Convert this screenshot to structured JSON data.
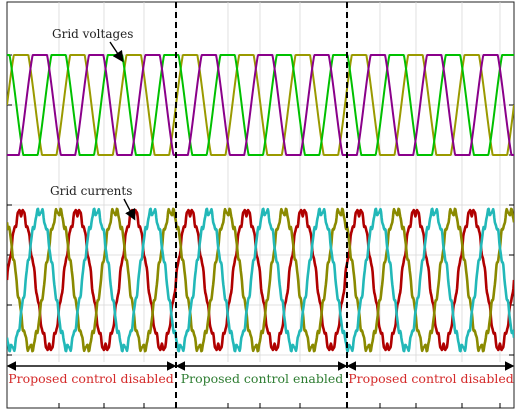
{
  "chart_data": [
    {
      "type": "line",
      "panel": "voltages",
      "title": "",
      "xlabel": "",
      "ylabel": "",
      "cycles_shown": 9,
      "waveform_shape": "clipped-sine",
      "grid": true,
      "annotation": "Grid voltages",
      "series": [
        {
          "name": "",
          "color": "#9a9a00",
          "phase_deg": 0,
          "amplitude": 1.0
        },
        {
          "name": "",
          "color": "#00c000",
          "phase_deg": 120,
          "amplitude": 1.0
        },
        {
          "name": "",
          "color": "#8a008a",
          "phase_deg": 240,
          "amplitude": 1.0
        }
      ]
    },
    {
      "type": "line",
      "panel": "currents",
      "title": "",
      "xlabel": "",
      "ylabel": "",
      "cycles_shown": 9,
      "waveform_shape": "sine-with-ripple",
      "grid": true,
      "annotation": "Grid currents",
      "series": [
        {
          "name": "",
          "color": "#b00000",
          "phase_deg": 0,
          "amplitude": 1.0
        },
        {
          "name": "",
          "color": "#8a8a00",
          "phase_deg": 120,
          "amplitude": 1.0
        },
        {
          "name": "",
          "color": "#22b8b8",
          "phase_deg": 240,
          "amplitude": 1.0
        }
      ]
    }
  ],
  "regions": [
    {
      "label": "Proposed control disabled",
      "color": "#d42a2a"
    },
    {
      "label": "Proposed control enabled",
      "color": "#2e7d32"
    },
    {
      "label": "Proposed control disabled",
      "color": "#d42a2a"
    }
  ],
  "annotations": {
    "voltages_label": "Grid voltages",
    "currents_label": "Grid currents"
  }
}
